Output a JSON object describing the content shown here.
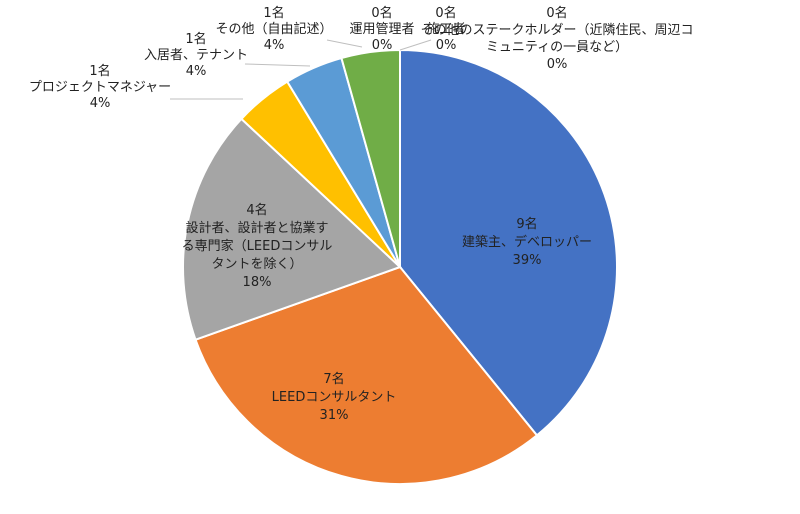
{
  "chart_data": {
    "type": "pie",
    "unit_suffix": "名",
    "slices": [
      {
        "category": "建築主、デベロッパー",
        "count": 9,
        "percent": "39%",
        "label_lines": [
          "9名",
          "建築主、デベロッパー",
          "39%"
        ],
        "color": "#4472C4"
      },
      {
        "category": "LEEDコンサルタント",
        "count": 7,
        "percent": "31%",
        "label_lines": [
          "7名",
          "LEEDコンサルタント",
          "31%"
        ],
        "color": "#ED7D31"
      },
      {
        "category": "設計者、設計者と協業する専門家（LEEDコンサルタントを除く）",
        "count": 4,
        "percent": "18%",
        "label_lines": [
          "4名",
          "設計者、設計者と協業す",
          "る専門家（LEEDコンサル",
          "タントを除く）",
          "18%"
        ],
        "color": "#A5A5A5"
      },
      {
        "category": "プロジェクトマネジャー",
        "count": 1,
        "percent": "4%",
        "label_lines": [
          "1名",
          "プロジェクトマネジャー",
          "4%"
        ],
        "color": "#FFC000"
      },
      {
        "category": "入居者、テナント",
        "count": 1,
        "percent": "4%",
        "label_lines": [
          "1名",
          "入居者、テナント",
          "4%"
        ],
        "color": "#5B9BD5"
      },
      {
        "category": "その他（自由記述）",
        "count": 1,
        "percent": "4%",
        "label_lines": [
          "1名",
          "その他（自由記述）",
          "4%"
        ],
        "color": "#70AD47"
      },
      {
        "category": "運用管理者",
        "count": 0,
        "percent": "0%",
        "label_lines": [
          "0名",
          "運用管理者",
          "0%"
        ],
        "color": "#264478"
      },
      {
        "category": "施工者",
        "count": 0,
        "percent": "0%",
        "label_lines": [
          "0名",
          "施工者",
          "0%"
        ],
        "color": "#9E480E"
      },
      {
        "category": "その他のステークホルダー（近隣住民、周辺コミュニティの一員など）",
        "count": 0,
        "percent": "0%",
        "label_lines": [
          "0名",
          "その他のステークホルダー（近隣住民、周辺コ",
          "ミュニティの一員など）",
          "0%"
        ],
        "color": "#636363"
      }
    ]
  }
}
